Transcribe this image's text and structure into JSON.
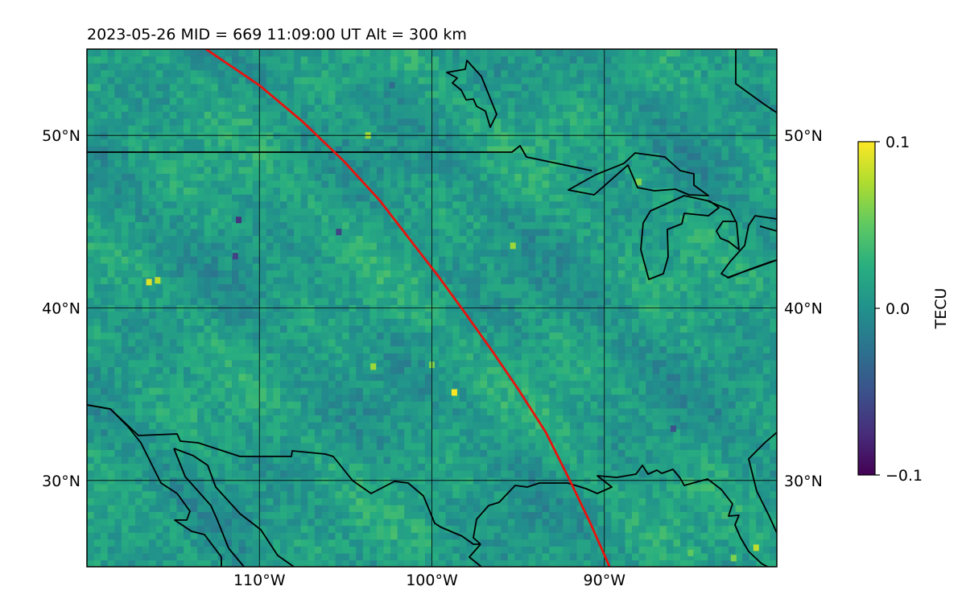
{
  "title": "2023-05-26  MID = 669    11:09:00  UT  Alt = 300 km",
  "chart_data": {
    "type": "heatmap",
    "title": "2023-05-26  MID = 669    11:09:00  UT  Alt = 300 km",
    "projection": "plate-carree",
    "lon_range": [
      -120,
      -80
    ],
    "lat_range": [
      25,
      55
    ],
    "grid": true,
    "x_ticks": [
      {
        "value": -110,
        "label": "110°W"
      },
      {
        "value": -100,
        "label": "100°W"
      },
      {
        "value": -90,
        "label": "90°W"
      }
    ],
    "y_ticks": [
      {
        "value": 30,
        "label": "30°N"
      },
      {
        "value": 40,
        "label": "40°N"
      },
      {
        "value": 50,
        "label": "50°N"
      }
    ],
    "colorbar": {
      "label": "TECU",
      "colormap": "viridis",
      "vmin": -0.1,
      "vmax": 0.1,
      "ticks": [
        {
          "value": 0.1,
          "label": "0.1"
        },
        {
          "value": 0.0,
          "label": "0.0"
        },
        {
          "value": -0.1,
          "label": "−0.1"
        }
      ]
    },
    "field": {
      "description_values": "gridded TEC perturbation in TECU",
      "background_mean": 0.01,
      "noise_amplitude": 0.02,
      "hotspots": [
        {
          "lon": -103.7,
          "lat": 50.0,
          "value": 0.07
        },
        {
          "lon": -116.4,
          "lat": 41.5,
          "value": 0.09
        },
        {
          "lon": -115.9,
          "lat": 41.6,
          "value": 0.08
        },
        {
          "lon": -95.3,
          "lat": 43.6,
          "value": 0.07
        },
        {
          "lon": -103.4,
          "lat": 36.6,
          "value": 0.07
        },
        {
          "lon": -100.0,
          "lat": 36.7,
          "value": 0.06
        },
        {
          "lon": -98.7,
          "lat": 35.1,
          "value": 0.1
        },
        {
          "lon": -81.2,
          "lat": 26.1,
          "value": 0.08
        },
        {
          "lon": -82.5,
          "lat": 25.5,
          "value": 0.06
        },
        {
          "lon": -85.0,
          "lat": 25.8,
          "value": 0.05
        },
        {
          "lon": -88.0,
          "lat": 47.3,
          "value": 0.06
        },
        {
          "lon": -105.4,
          "lat": 44.4,
          "value": -0.06
        },
        {
          "lon": -111.2,
          "lat": 45.1,
          "value": -0.07
        },
        {
          "lon": -111.4,
          "lat": 43.0,
          "value": -0.06
        },
        {
          "lon": -86.0,
          "lat": 33.0,
          "value": -0.05
        },
        {
          "lon": -102.3,
          "lat": 52.9,
          "value": -0.03
        }
      ]
    },
    "track": {
      "color": "#e8120e",
      "points": [
        [
          -113.1,
          55.0
        ],
        [
          -110.0,
          52.9
        ],
        [
          -107.5,
          50.8
        ],
        [
          -105.1,
          48.5
        ],
        [
          -103.0,
          46.2
        ],
        [
          -101.3,
          44.0
        ],
        [
          -99.6,
          41.8
        ],
        [
          -98.0,
          39.6
        ],
        [
          -96.5,
          37.5
        ],
        [
          -95.0,
          35.3
        ],
        [
          -93.4,
          32.8
        ],
        [
          -92.0,
          30.0
        ],
        [
          -90.8,
          27.5
        ],
        [
          -89.7,
          25.0
        ]
      ]
    }
  },
  "colorbar_label": "TECU"
}
